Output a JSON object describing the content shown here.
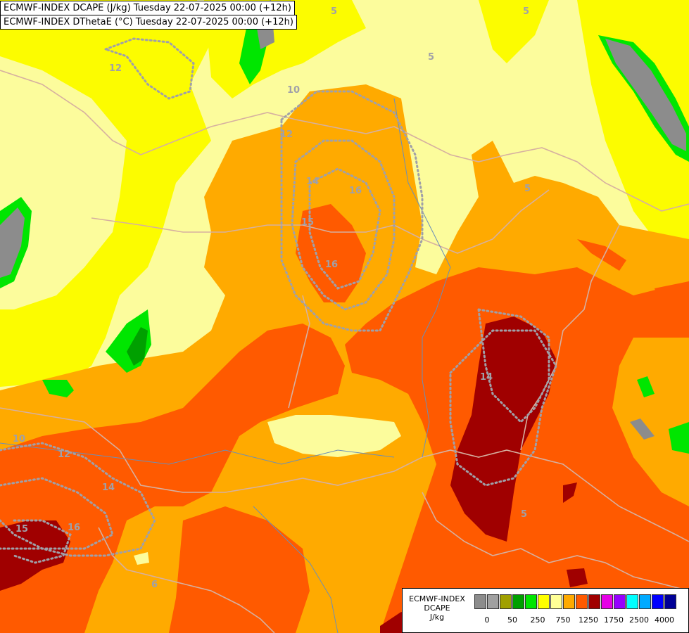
{
  "header": {
    "line1": "ECMWF-INDEX DCAPE (J/kg) Tuesday 22-07-2025 00:00 (+12h)",
    "line2": "ECMWF-INDEX DThetaE (°C) Tuesday 22-07-2025 00:00 (+12h)"
  },
  "legend": {
    "title1": "ECMWF-INDEX",
    "title2": "DCAPE",
    "unit": "J/kg",
    "colors": [
      "#8c8c8c",
      "#a0a0a0",
      "#a0a000",
      "#00a000",
      "#00e600",
      "#ffff00",
      "#ffff96",
      "#ffaa00",
      "#ff5a00",
      "#a00000",
      "#e600e6",
      "#9600ff",
      "#00ffff",
      "#00aaff",
      "#0000ff",
      "#000096"
    ],
    "tick_labels": [
      "0",
      "50",
      "250",
      "750",
      "1250",
      "1750",
      "2500",
      "4000"
    ]
  },
  "contour_labels": [
    "10",
    "5",
    "12",
    "12",
    "14",
    "16",
    "15",
    "16",
    "14",
    "10",
    "12",
    "14",
    "15",
    "16",
    "5",
    "5",
    "5",
    "6",
    "5"
  ]
}
